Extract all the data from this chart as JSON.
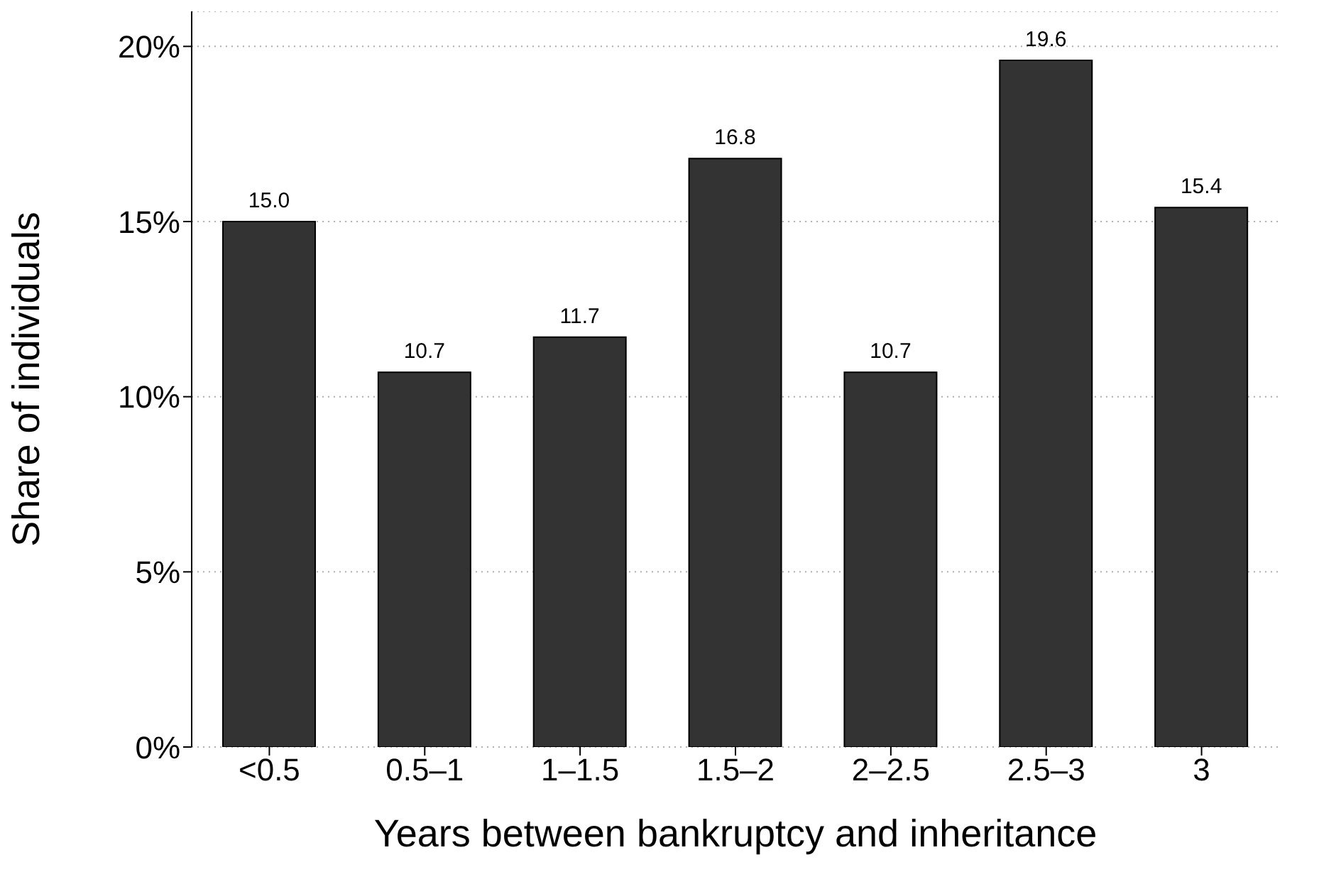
{
  "chart_data": {
    "type": "bar",
    "xlabel": "Years between bankruptcy and inheritance",
    "ylabel": "Share of individuals",
    "categories": [
      "<0.5",
      "0.5–1",
      "1–1.5",
      "1.5–2",
      "2–2.5",
      "2.5–3",
      "3"
    ],
    "values": [
      15.0,
      10.7,
      11.7,
      16.8,
      10.7,
      19.6,
      15.4
    ],
    "value_labels": [
      "15.0",
      "10.7",
      "11.7",
      "16.8",
      "10.7",
      "19.6",
      "15.4"
    ],
    "color": "#333333",
    "ylim": [
      0,
      21
    ],
    "yticks": [
      {
        "value": 0,
        "label": "0%"
      },
      {
        "value": 5,
        "label": "5%"
      },
      {
        "value": 10,
        "label": "10%"
      },
      {
        "value": 15,
        "label": "15%"
      },
      {
        "value": 20,
        "label": "20%"
      }
    ],
    "grid": "y"
  }
}
